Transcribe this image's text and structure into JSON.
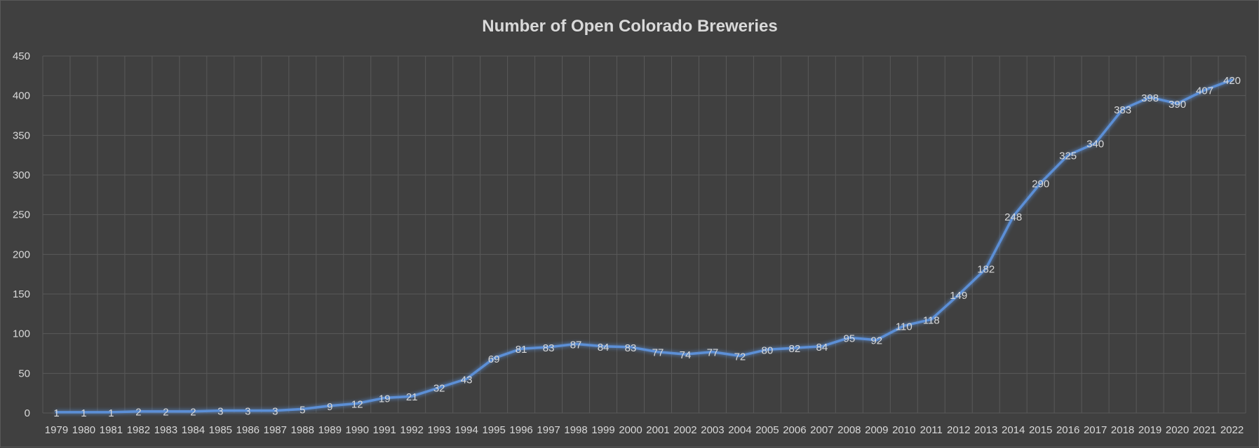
{
  "chart_data": {
    "type": "line",
    "title": "Number of Open Colorado Breweries",
    "xlabel": "",
    "ylabel": "",
    "ylim": [
      0,
      450
    ],
    "y_ticks": [
      0,
      50,
      100,
      150,
      200,
      250,
      300,
      350,
      400,
      450
    ],
    "grid": true,
    "legend": "none",
    "data_labels": true,
    "categories": [
      "1979",
      "1980",
      "1981",
      "1982",
      "1983",
      "1984",
      "1985",
      "1986",
      "1987",
      "1988",
      "1989",
      "1990",
      "1991",
      "1992",
      "1993",
      "1994",
      "1995",
      "1996",
      "1997",
      "1998",
      "1999",
      "2000",
      "2001",
      "2002",
      "2003",
      "2004",
      "2005",
      "2006",
      "2007",
      "2008",
      "2009",
      "2010",
      "2011",
      "2012",
      "2013",
      "2014",
      "2015",
      "2016",
      "2017",
      "2018",
      "2019",
      "2020",
      "2021",
      "2022"
    ],
    "series": [
      {
        "values": [
          1,
          1,
          1,
          2,
          2,
          2,
          3,
          3,
          3,
          5,
          9,
          12,
          19,
          21,
          32,
          43,
          69,
          81,
          83,
          87,
          84,
          83,
          77,
          74,
          77,
          72,
          80,
          82,
          84,
          95,
          92,
          110,
          118,
          149,
          182,
          248,
          290,
          325,
          340,
          383,
          398,
          390,
          407,
          420
        ],
        "color": "#4f81bd"
      }
    ],
    "colors": {
      "background": "#404040",
      "gridline": "#595959",
      "text": "#d9d9d9",
      "line": "#5b8fd6"
    }
  }
}
